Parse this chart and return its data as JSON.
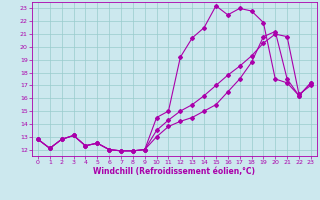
{
  "xlabel": "Windchill (Refroidissement éolien,°C)",
  "ylabel": "",
  "background_color": "#cce8ee",
  "line_color": "#aa00aa",
  "grid_color": "#99cccc",
  "xlim": [
    -0.5,
    23.5
  ],
  "ylim": [
    11.5,
    23.5
  ],
  "xticks": [
    0,
    1,
    2,
    3,
    4,
    5,
    6,
    7,
    8,
    9,
    10,
    11,
    12,
    13,
    14,
    15,
    16,
    17,
    18,
    19,
    20,
    21,
    22,
    23
  ],
  "yticks": [
    12,
    13,
    14,
    15,
    16,
    17,
    18,
    19,
    20,
    21,
    22,
    23
  ],
  "line1_x": [
    0,
    1,
    2,
    3,
    4,
    5,
    6,
    7,
    8,
    9,
    10,
    11,
    12,
    13,
    14,
    15,
    16,
    17,
    18,
    19,
    20,
    21,
    22,
    23
  ],
  "line1_y": [
    12.8,
    12.1,
    12.8,
    13.1,
    12.3,
    12.5,
    12.0,
    11.9,
    11.9,
    12.0,
    13.5,
    14.3,
    15.0,
    15.5,
    16.2,
    17.0,
    17.8,
    18.5,
    19.3,
    20.3,
    21.0,
    20.8,
    16.3,
    17.0
  ],
  "line2_x": [
    0,
    1,
    2,
    3,
    4,
    5,
    6,
    7,
    8,
    9,
    10,
    11,
    12,
    13,
    14,
    15,
    16,
    17,
    18,
    19,
    20,
    21,
    22,
    23
  ],
  "line2_y": [
    12.8,
    12.1,
    12.8,
    13.1,
    12.3,
    12.5,
    12.0,
    11.9,
    11.9,
    12.0,
    14.5,
    15.0,
    19.2,
    20.7,
    21.5,
    23.2,
    22.5,
    23.0,
    22.8,
    21.9,
    17.5,
    17.2,
    16.2,
    17.2
  ],
  "line3_x": [
    0,
    1,
    2,
    3,
    4,
    5,
    6,
    7,
    8,
    9,
    10,
    11,
    12,
    13,
    14,
    15,
    16,
    17,
    18,
    19,
    20,
    21,
    22,
    23
  ],
  "line3_y": [
    12.8,
    12.1,
    12.8,
    13.1,
    12.3,
    12.5,
    12.0,
    11.9,
    11.9,
    12.0,
    13.0,
    13.8,
    14.2,
    14.5,
    15.0,
    15.5,
    16.5,
    17.5,
    18.8,
    20.8,
    21.2,
    17.5,
    16.2,
    17.2
  ],
  "tick_fontsize": 4.5,
  "xlabel_fontsize": 5.5,
  "marker_size": 2.0,
  "linewidth": 0.8
}
